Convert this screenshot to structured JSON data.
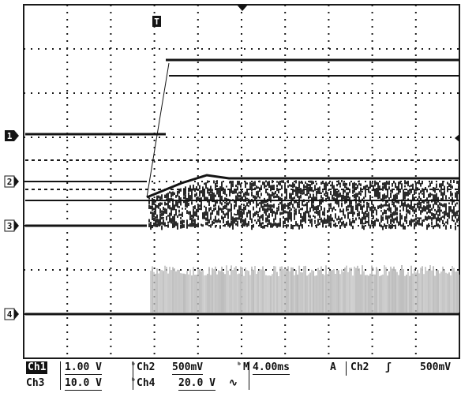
{
  "trigger_marker": "T",
  "channels": [
    {
      "marker": "1",
      "id": "Ch1",
      "scale": "1.00 V",
      "coupling": "BW-limit"
    },
    {
      "marker": "2",
      "id": "Ch2",
      "scale": "500mV",
      "coupling": "BW-limit"
    },
    {
      "marker": "3",
      "id": "Ch3",
      "scale": "10.0 V",
      "coupling": "BW-limit"
    },
    {
      "marker": "4",
      "id": "Ch4",
      "scale": "20.0 V",
      "coupling": "AC"
    }
  ],
  "status": {
    "ch1_label": "Ch1",
    "ch1_scale": "1.00 V",
    "ch2_label": "Ch2",
    "ch2_scale": "500mV",
    "ch3_label": "Ch3",
    "ch3_scale": "10.0 V",
    "ch4_label": "Ch4",
    "ch4_scale": "20.0 V",
    "ch4_coupling_glyph": "∿",
    "bw_glyph": "ᵇ",
    "timebase_prefix": "M",
    "timebase": "4.00ms",
    "trigger_mode": "A",
    "trigger_source": "Ch2",
    "trigger_slope_glyph": "ʃ",
    "trigger_level": "500mV"
  },
  "colors": {
    "trace": "#141414",
    "grid": "#1a1a1a",
    "ch4_noise": "#bdbdbd",
    "ch2_noise": "#2a2a2a",
    "background": "#ffffff"
  }
}
